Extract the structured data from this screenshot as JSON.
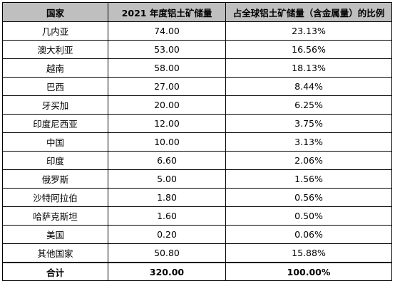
{
  "table": {
    "headers": [
      "国家",
      "2021 年度铝土矿储量",
      "占全球铝土矿储量（含金属量）的比例"
    ],
    "rows": [
      {
        "country": "几内亚",
        "reserve": "74.00",
        "share": "23.13%"
      },
      {
        "country": "澳大利亚",
        "reserve": "53.00",
        "share": "16.56%"
      },
      {
        "country": "越南",
        "reserve": "58.00",
        "share": "18.13%"
      },
      {
        "country": "巴西",
        "reserve": "27.00",
        "share": "8.44%"
      },
      {
        "country": "牙买加",
        "reserve": "20.00",
        "share": "6.25%"
      },
      {
        "country": "印度尼西亚",
        "reserve": "12.00",
        "share": "3.75%"
      },
      {
        "country": "中国",
        "reserve": "10.00",
        "share": "3.13%"
      },
      {
        "country": "印度",
        "reserve": "6.60",
        "share": "2.06%"
      },
      {
        "country": "俄罗斯",
        "reserve": "5.00",
        "share": "1.56%"
      },
      {
        "country": "沙特阿拉伯",
        "reserve": "1.80",
        "share": "0.56%"
      },
      {
        "country": "哈萨克斯坦",
        "reserve": "1.60",
        "share": "0.50%"
      },
      {
        "country": "美国",
        "reserve": "0.20",
        "share": "0.06%"
      },
      {
        "country": "其他国家",
        "reserve": "50.80",
        "share": "15.88%"
      }
    ],
    "total": {
      "label": "合计",
      "reserve": "320.00",
      "share": "100.00%"
    }
  }
}
